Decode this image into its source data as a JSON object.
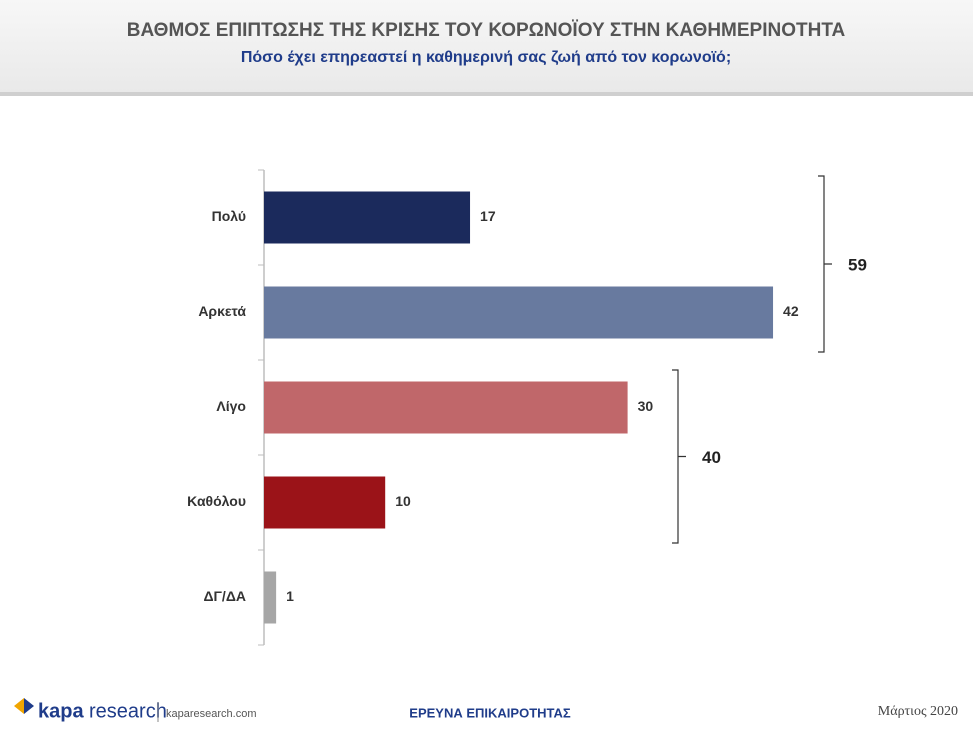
{
  "chart_data": {
    "type": "bar",
    "orientation": "horizontal",
    "title": "ΒΑΘΜΟΣ ΕΠΙΠΤΩΣΗΣ ΤΗΣ ΚΡΙΣΗΣ ΤΟΥ ΚΟΡΩΝΟΪΟΥ ΣΤΗΝ ΚΑΘΗΜΕΡΙΝΟΤΗΤΑ",
    "subtitle": "Πόσο έχει επηρεαστεί η καθημερινή σας ζωή από τον κορωνοϊό;",
    "categories": [
      "Πολύ",
      "Αρκετά",
      "Λίγο",
      "Καθόλου",
      "ΔΓ/ΔΑ"
    ],
    "values": [
      17,
      42,
      30,
      10,
      1
    ],
    "colors": [
      "#1b2a5c",
      "#687a9f",
      "#c0676a",
      "#9b1318",
      "#a6a6a6"
    ],
    "annotations": [
      59,
      40
    ]
  },
  "footer": {
    "logo_bold": "kapa",
    "logo_light": "research",
    "website": "kaparesearch.com",
    "center": "ΕΡΕΥΝΑ ΕΠΙΚΑΙΡΟΤΗΤΑΣ",
    "date": "Μάρτιος 2020"
  }
}
